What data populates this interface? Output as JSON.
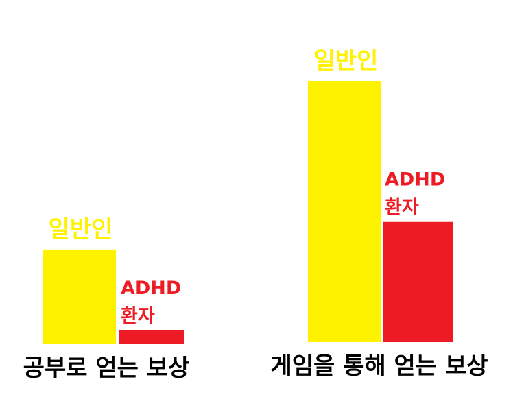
{
  "chart_data": {
    "type": "bar",
    "categories": [
      "공부로 얻는 보상",
      "게임을 통해 얻는 보상"
    ],
    "series": [
      {
        "name": "일반인",
        "values": [
          36,
          100
        ],
        "color": "#FFF200"
      },
      {
        "name": "ADHD 환자",
        "values": [
          5,
          46
        ],
        "color": "#ED1C24"
      }
    ],
    "title": "",
    "xlabel": "",
    "ylabel": "",
    "ylim": [
      0,
      100
    ],
    "grid": false,
    "legend": "none"
  }
}
